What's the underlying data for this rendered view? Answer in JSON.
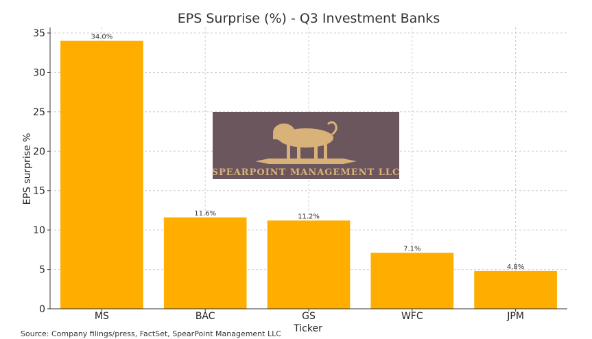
{
  "chart_data": {
    "type": "bar",
    "title": "EPS Surprise (%) - Q3 Investment Banks",
    "xlabel": "Ticker",
    "ylabel": "EPS surprise %",
    "categories": [
      "MS",
      "BAC",
      "GS",
      "WFC",
      "JPM"
    ],
    "values": [
      34.0,
      11.6,
      11.2,
      7.1,
      4.8
    ],
    "value_labels": [
      "34.0%",
      "11.6%",
      "11.2%",
      "7.1%",
      "4.8%"
    ],
    "ylim": [
      0,
      35.7
    ],
    "yticks": [
      0,
      5,
      10,
      15,
      20,
      25,
      30,
      35
    ],
    "grid": true,
    "bar_color": "#FFAE00"
  },
  "watermark": {
    "text": "SPEARPOINT MANAGEMENT LLC",
    "background": "#6B565E",
    "color": "#D9B27A"
  },
  "source": "Source: Company filings/press, FactSet, SpearPoint Management LLC"
}
